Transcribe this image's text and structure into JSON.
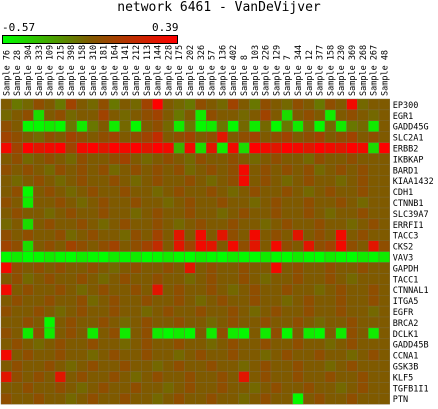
{
  "chart_data": {
    "type": "heatmap",
    "title": "network 6461 - VanDeVijver",
    "color_scale": {
      "min": -0.57,
      "max": 0.39,
      "min_label": "-0.57",
      "max_label": "0.39",
      "low_color": "#00ff00",
      "mid_color": "#7f5a00",
      "high_color": "#ff0000"
    },
    "columns": [
      "Sample 76",
      "Sample 28",
      "Sample 304",
      "Sample 333",
      "Sample 109",
      "Sample 215",
      "Sample 398",
      "Sample 158",
      "Sample 310",
      "Sample 181",
      "Sample 164",
      "Sample 141",
      "Sample 212",
      "Sample 113",
      "Sample 144",
      "Sample 228",
      "Sample 175",
      "Sample 202",
      "Sample 326",
      "Sample 57",
      "Sample 136",
      "Sample 402",
      "Sample 8",
      "Sample 103",
      "Sample 226",
      "Sample 129",
      "Sample 7",
      "Sample 344",
      "Sample 12",
      "Sample 377",
      "Sample 158",
      "Sample 230",
      "Sample 369",
      "Sample 268",
      "Sample 267",
      "Sample 48"
    ],
    "rows": [
      "EP300",
      "EGR1",
      "GADD45G",
      "SLC2A1",
      "ERBB2",
      "IKBKAP",
      "BARD1",
      "KIAA1432",
      "CDH1",
      "CTNNB1",
      "SLC39A7",
      "ERRFI1",
      "TACC3",
      "CKS2",
      "VAV3",
      "GAPDH",
      "TACC1",
      "CTNNAL1",
      "ITGA5",
      "EGFR",
      "BRCA2",
      "DCLK1",
      "GADD45B",
      "CCNA1",
      "GSK3B",
      "KLF5",
      "TGFB1I1",
      "PTN"
    ],
    "values": [
      [
        0.0,
        -0.1,
        -0.05,
        0.05,
        0.0,
        -0.1,
        0.1,
        0.0,
        -0.05,
        0.05,
        -0.1,
        0.0,
        -0.05,
        0.1,
        0.39,
        0.0,
        -0.05,
        -0.1,
        0.05,
        0.0,
        -0.05,
        0.1,
        0.0,
        -0.1,
        0.05,
        0.0,
        -0.05,
        0.05,
        0.0,
        -0.1,
        0.05,
        0.0,
        0.35,
        -0.05,
        0.0,
        0.0
      ],
      [
        -0.05,
        0.0,
        0.05,
        -0.45,
        0.0,
        0.05,
        -0.05,
        0.0,
        0.0,
        0.1,
        0.0,
        -0.05,
        0.0,
        0.05,
        0.1,
        0.0,
        -0.1,
        0.0,
        -0.5,
        0.05,
        0.0,
        0.0,
        -0.05,
        0.0,
        0.1,
        0.0,
        -0.45,
        0.0,
        0.05,
        0.0,
        -0.5,
        0.0,
        0.05,
        0.0,
        -0.05,
        0.0
      ],
      [
        0.05,
        0.0,
        -0.55,
        -0.55,
        -0.5,
        -0.55,
        -0.1,
        -0.5,
        -0.1,
        0.0,
        -0.5,
        -0.05,
        -0.55,
        0.0,
        0.05,
        -0.05,
        -0.5,
        -0.1,
        -0.55,
        -0.5,
        -0.1,
        -0.55,
        -0.05,
        -0.5,
        -0.05,
        -0.55,
        -0.1,
        -0.5,
        -0.05,
        -0.55,
        -0.05,
        -0.5,
        -0.1,
        -0.05,
        -0.5,
        0.0
      ],
      [
        0.1,
        0.05,
        0.0,
        -0.05,
        0.05,
        0.0,
        0.1,
        0.05,
        0.0,
        0.05,
        0.1,
        0.0,
        0.05,
        0.1,
        0.2,
        0.0,
        0.05,
        0.1,
        0.0,
        0.05,
        0.3,
        0.0,
        0.05,
        0.1,
        0.0,
        0.05,
        0.1,
        0.0,
        0.05,
        0.1,
        0.0,
        0.05,
        0.1,
        0.0,
        0.05,
        0.0
      ],
      [
        0.35,
        0.1,
        0.39,
        0.3,
        0.35,
        0.39,
        0.1,
        0.35,
        0.39,
        0.3,
        0.39,
        0.35,
        0.39,
        0.3,
        0.39,
        0.35,
        -0.3,
        0.35,
        -0.45,
        0.3,
        -0.5,
        0.35,
        -0.45,
        0.39,
        0.35,
        0.3,
        0.39,
        0.35,
        0.3,
        0.39,
        0.35,
        0.3,
        0.39,
        0.35,
        -0.45,
        0.39
      ],
      [
        0.0,
        0.05,
        -0.05,
        0.0,
        0.05,
        0.0,
        -0.05,
        0.05,
        0.0,
        0.0,
        0.05,
        0.1,
        0.0,
        -0.05,
        0.0,
        0.05,
        0.0,
        -0.05,
        0.05,
        0.0,
        0.0,
        0.05,
        0.0,
        -0.05,
        0.0,
        0.05,
        0.0,
        0.0,
        -0.05,
        0.05,
        0.0,
        0.0,
        0.05,
        0.0,
        0.0,
        0.0
      ],
      [
        0.05,
        0.0,
        0.05,
        0.0,
        -0.05,
        0.05,
        0.0,
        0.05,
        0.0,
        0.05,
        -0.05,
        0.0,
        0.05,
        0.0,
        0.05,
        0.0,
        0.05,
        -0.05,
        0.0,
        0.05,
        0.0,
        0.05,
        0.35,
        0.0,
        0.05,
        0.0,
        0.05,
        0.0,
        0.05,
        -0.05,
        0.0,
        0.05,
        0.0,
        0.05,
        0.0,
        0.0
      ],
      [
        0.0,
        -0.05,
        0.0,
        0.05,
        0.0,
        -0.05,
        0.0,
        0.05,
        0.0,
        0.0,
        0.05,
        0.0,
        -0.05,
        0.0,
        0.05,
        0.0,
        0.0,
        0.05,
        0.0,
        -0.05,
        0.0,
        0.05,
        0.35,
        0.0,
        0.05,
        0.0,
        -0.05,
        0.0,
        0.05,
        0.0,
        0.0,
        -0.05,
        0.0,
        0.05,
        0.0,
        0.0
      ],
      [
        0.0,
        0.05,
        -0.55,
        0.0,
        0.05,
        0.0,
        -0.05,
        0.0,
        0.05,
        0.0,
        0.0,
        0.05,
        0.0,
        0.0,
        -0.05,
        0.0,
        0.05,
        0.0,
        0.0,
        0.05,
        0.0,
        -0.05,
        0.0,
        0.05,
        0.0,
        0.0,
        0.05,
        0.0,
        -0.05,
        0.0,
        0.05,
        0.0,
        0.0,
        0.05,
        0.0,
        0.0
      ],
      [
        0.05,
        0.0,
        -0.5,
        0.0,
        0.0,
        0.05,
        0.0,
        -0.05,
        0.0,
        0.05,
        0.0,
        0.0,
        0.05,
        0.0,
        0.0,
        -0.05,
        0.0,
        0.05,
        0.0,
        0.0,
        0.05,
        0.0,
        0.0,
        -0.05,
        0.0,
        0.05,
        0.0,
        0.0,
        0.05,
        0.0,
        0.0,
        0.05,
        0.0,
        -0.05,
        0.0,
        0.0
      ],
      [
        0.0,
        0.05,
        0.0,
        0.0,
        -0.05,
        0.0,
        0.05,
        0.0,
        0.0,
        0.05,
        0.0,
        0.0,
        -0.05,
        0.0,
        0.05,
        0.0,
        0.0,
        0.05,
        0.0,
        0.0,
        -0.05,
        0.0,
        0.05,
        0.0,
        0.0,
        0.05,
        0.0,
        0.0,
        0.05,
        0.0,
        -0.05,
        0.0,
        0.0,
        0.05,
        0.0,
        0.0
      ],
      [
        -0.05,
        0.0,
        -0.45,
        0.0,
        0.05,
        0.0,
        0.0,
        0.05,
        0.0,
        -0.05,
        0.0,
        0.05,
        0.0,
        0.0,
        0.05,
        0.0,
        -0.05,
        0.0,
        0.05,
        0.0,
        0.0,
        0.05,
        0.0,
        0.0,
        -0.05,
        0.0,
        0.05,
        0.0,
        0.0,
        0.05,
        0.0,
        0.0,
        -0.05,
        0.0,
        0.05,
        0.0
      ],
      [
        0.05,
        0.0,
        0.05,
        0.0,
        0.0,
        0.05,
        -0.05,
        0.0,
        0.05,
        0.0,
        0.0,
        -0.05,
        0.05,
        0.0,
        0.1,
        0.0,
        0.3,
        0.0,
        0.35,
        0.0,
        0.3,
        0.05,
        0.0,
        0.35,
        0.0,
        0.05,
        0.0,
        0.3,
        0.0,
        0.05,
        0.0,
        0.35,
        0.0,
        0.05,
        0.0,
        0.0
      ],
      [
        0.1,
        0.05,
        -0.45,
        0.0,
        0.05,
        0.0,
        0.1,
        0.05,
        0.0,
        0.05,
        0.1,
        0.0,
        0.05,
        0.1,
        0.2,
        0.0,
        0.3,
        0.1,
        0.35,
        0.3,
        0.0,
        0.35,
        0.05,
        0.3,
        0.0,
        0.35,
        0.05,
        0.0,
        0.3,
        0.05,
        0.1,
        0.35,
        0.05,
        0.0,
        0.3,
        0.05
      ],
      [
        -0.55,
        -0.5,
        -0.57,
        -0.55,
        -0.5,
        -0.55,
        -0.57,
        -0.5,
        -0.55,
        -0.57,
        -0.5,
        -0.55,
        -0.5,
        -0.57,
        -0.55,
        -0.5,
        -0.55,
        -0.57,
        -0.5,
        -0.55,
        -0.57,
        -0.5,
        -0.55,
        -0.57,
        -0.5,
        -0.55,
        -0.57,
        -0.5,
        -0.55,
        -0.57,
        -0.5,
        -0.55,
        -0.57,
        -0.5,
        -0.55,
        -0.5
      ],
      [
        0.35,
        0.05,
        0.0,
        0.05,
        0.0,
        0.05,
        0.0,
        0.0,
        0.05,
        0.0,
        -0.05,
        0.0,
        0.05,
        0.0,
        0.0,
        0.05,
        0.0,
        0.3,
        0.0,
        0.05,
        0.0,
        0.0,
        0.05,
        0.0,
        0.0,
        0.35,
        0.0,
        0.05,
        0.0,
        0.0,
        0.05,
        0.0,
        0.0,
        0.05,
        0.0,
        0.0
      ],
      [
        0.0,
        0.05,
        -0.05,
        0.0,
        0.05,
        0.0,
        0.0,
        0.05,
        0.0,
        -0.05,
        0.0,
        0.05,
        0.0,
        0.0,
        0.05,
        0.0,
        0.0,
        -0.05,
        0.0,
        0.05,
        0.0,
        0.0,
        0.05,
        0.0,
        -0.05,
        0.0,
        0.0,
        0.05,
        0.0,
        0.0,
        0.05,
        0.0,
        -0.05,
        0.0,
        0.0,
        0.0
      ],
      [
        0.35,
        0.0,
        0.05,
        0.0,
        0.0,
        0.05,
        0.0,
        -0.05,
        0.0,
        0.05,
        0.0,
        0.0,
        0.05,
        0.0,
        0.3,
        0.0,
        0.05,
        0.0,
        0.0,
        0.05,
        0.0,
        -0.05,
        0.0,
        0.05,
        0.0,
        0.0,
        0.05,
        0.0,
        0.0,
        -0.05,
        0.0,
        0.05,
        0.0,
        0.0,
        0.05,
        0.0
      ],
      [
        0.0,
        0.05,
        0.0,
        0.0,
        0.05,
        0.0,
        0.0,
        0.05,
        -0.05,
        0.0,
        0.05,
        0.0,
        0.0,
        0.05,
        0.0,
        0.0,
        0.05,
        0.0,
        -0.05,
        0.0,
        0.05,
        0.0,
        0.0,
        0.05,
        0.0,
        0.0,
        -0.05,
        0.0,
        0.05,
        0.0,
        0.0,
        0.05,
        0.0,
        0.0,
        0.05,
        0.0
      ],
      [
        0.05,
        0.0,
        0.0,
        0.05,
        0.0,
        -0.05,
        0.0,
        0.05,
        0.0,
        0.0,
        0.05,
        0.0,
        0.0,
        -0.05,
        0.0,
        0.05,
        0.0,
        0.0,
        0.05,
        0.0,
        0.0,
        0.05,
        0.0,
        -0.05,
        0.0,
        0.05,
        0.0,
        0.0,
        0.05,
        0.0,
        0.0,
        0.05,
        0.0,
        0.0,
        -0.05,
        0.0
      ],
      [
        0.0,
        0.0,
        0.05,
        0.0,
        -0.55,
        0.0,
        0.05,
        0.0,
        0.0,
        0.05,
        0.0,
        -0.05,
        0.0,
        0.05,
        0.0,
        0.0,
        0.05,
        0.0,
        0.0,
        -0.05,
        0.0,
        0.05,
        0.0,
        0.0,
        0.05,
        0.0,
        0.0,
        0.05,
        0.0,
        -0.05,
        0.0,
        0.0,
        0.05,
        0.0,
        0.0,
        0.0
      ],
      [
        0.05,
        0.0,
        -0.5,
        0.05,
        -0.5,
        0.0,
        0.05,
        0.0,
        -0.5,
        0.0,
        0.05,
        -0.5,
        0.0,
        0.05,
        -0.5,
        -0.55,
        -0.5,
        -0.55,
        0.0,
        -0.5,
        0.05,
        -0.5,
        -0.55,
        0.0,
        -0.5,
        0.05,
        -0.55,
        0.0,
        -0.5,
        -0.55,
        0.0,
        -0.5,
        0.05,
        0.0,
        -0.5,
        0.0
      ],
      [
        0.0,
        0.05,
        0.0,
        -0.05,
        0.0,
        0.05,
        0.0,
        0.0,
        0.05,
        0.0,
        0.0,
        -0.05,
        0.0,
        0.05,
        0.0,
        0.0,
        0.05,
        0.0,
        0.0,
        -0.05,
        0.0,
        0.05,
        0.0,
        0.0,
        0.05,
        0.0,
        0.0,
        0.05,
        0.0,
        0.0,
        -0.05,
        0.0,
        0.05,
        0.0,
        0.0,
        0.0
      ],
      [
        0.35,
        0.0,
        0.05,
        0.0,
        0.0,
        0.05,
        0.0,
        0.0,
        -0.05,
        0.0,
        0.05,
        0.0,
        0.0,
        0.05,
        0.0,
        0.0,
        -0.05,
        0.0,
        0.05,
        0.0,
        0.0,
        0.05,
        0.0,
        0.0,
        -0.05,
        0.0,
        0.05,
        0.0,
        0.0,
        0.05,
        0.0,
        0.0,
        -0.05,
        0.0,
        0.05,
        0.0
      ],
      [
        0.0,
        0.05,
        0.0,
        0.0,
        0.05,
        0.0,
        -0.05,
        0.0,
        0.05,
        0.0,
        0.0,
        0.05,
        0.0,
        0.0,
        -0.05,
        0.0,
        0.05,
        0.0,
        0.0,
        0.05,
        0.0,
        0.0,
        -0.05,
        0.0,
        0.05,
        0.0,
        0.0,
        0.05,
        0.0,
        0.0,
        -0.05,
        0.0,
        0.05,
        0.0,
        0.0,
        0.0
      ],
      [
        0.3,
        0.05,
        0.0,
        0.05,
        0.0,
        0.3,
        0.0,
        0.05,
        0.0,
        0.0,
        0.05,
        0.0,
        -0.05,
        0.0,
        0.05,
        0.0,
        0.0,
        0.05,
        0.0,
        0.0,
        0.05,
        0.0,
        0.3,
        0.0,
        0.05,
        0.0,
        0.0,
        0.05,
        0.0,
        0.0,
        0.05,
        0.0,
        0.0,
        0.05,
        0.0,
        0.0
      ],
      [
        0.0,
        0.0,
        0.05,
        0.0,
        0.0,
        0.05,
        0.0,
        -0.05,
        0.0,
        0.05,
        0.0,
        0.0,
        0.05,
        0.0,
        0.0,
        -0.05,
        0.0,
        0.05,
        0.0,
        0.0,
        0.05,
        0.0,
        0.0,
        -0.05,
        0.0,
        0.05,
        0.0,
        0.0,
        0.05,
        0.0,
        0.0,
        -0.05,
        0.0,
        0.05,
        0.0,
        0.0
      ],
      [
        0.05,
        0.0,
        0.0,
        0.05,
        0.0,
        0.0,
        -0.05,
        0.0,
        0.05,
        0.0,
        0.0,
        0.05,
        0.0,
        0.0,
        -0.05,
        0.0,
        0.05,
        0.0,
        0.0,
        0.05,
        0.0,
        0.0,
        -0.05,
        0.0,
        0.05,
        0.0,
        0.0,
        -0.55,
        0.0,
        0.05,
        0.0,
        0.0,
        0.05,
        0.0,
        0.0,
        0.0
      ]
    ]
  }
}
